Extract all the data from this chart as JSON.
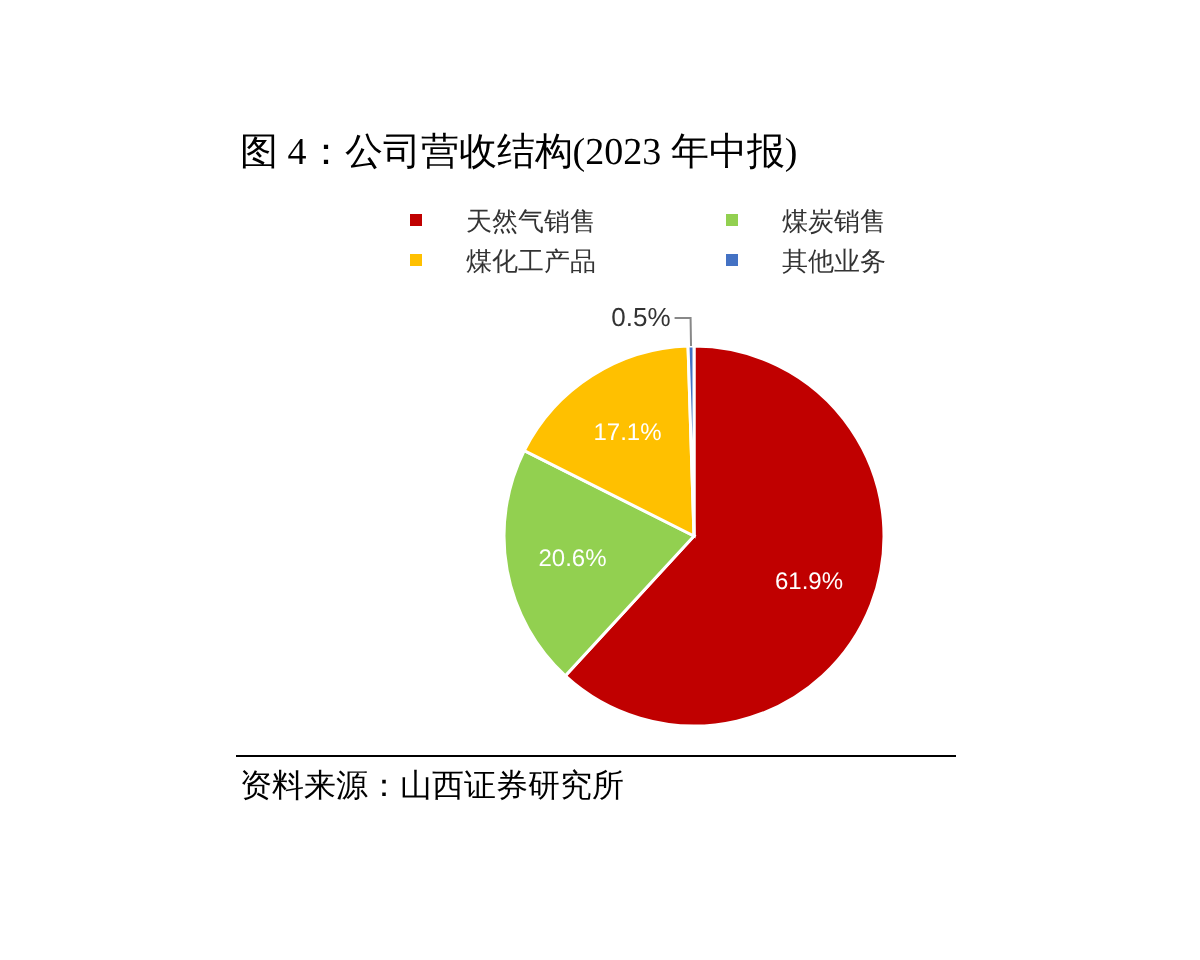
{
  "chart_data": {
    "type": "pie",
    "title": "图 4：公司营收结构(2023 年中报)",
    "categories": [
      "天然气销售",
      "煤炭销售",
      "煤化工产品",
      "其他业务"
    ],
    "values": [
      61.9,
      20.6,
      17.1,
      0.5
    ],
    "colors": [
      "#c00000",
      "#92d050",
      "#ffc000",
      "#4472c4"
    ],
    "value_labels": [
      "61.9%",
      "20.6%",
      "17.1%",
      "0.5%"
    ],
    "legend": "top",
    "annotations": [
      "资料来源：山西证券研究所"
    ]
  }
}
